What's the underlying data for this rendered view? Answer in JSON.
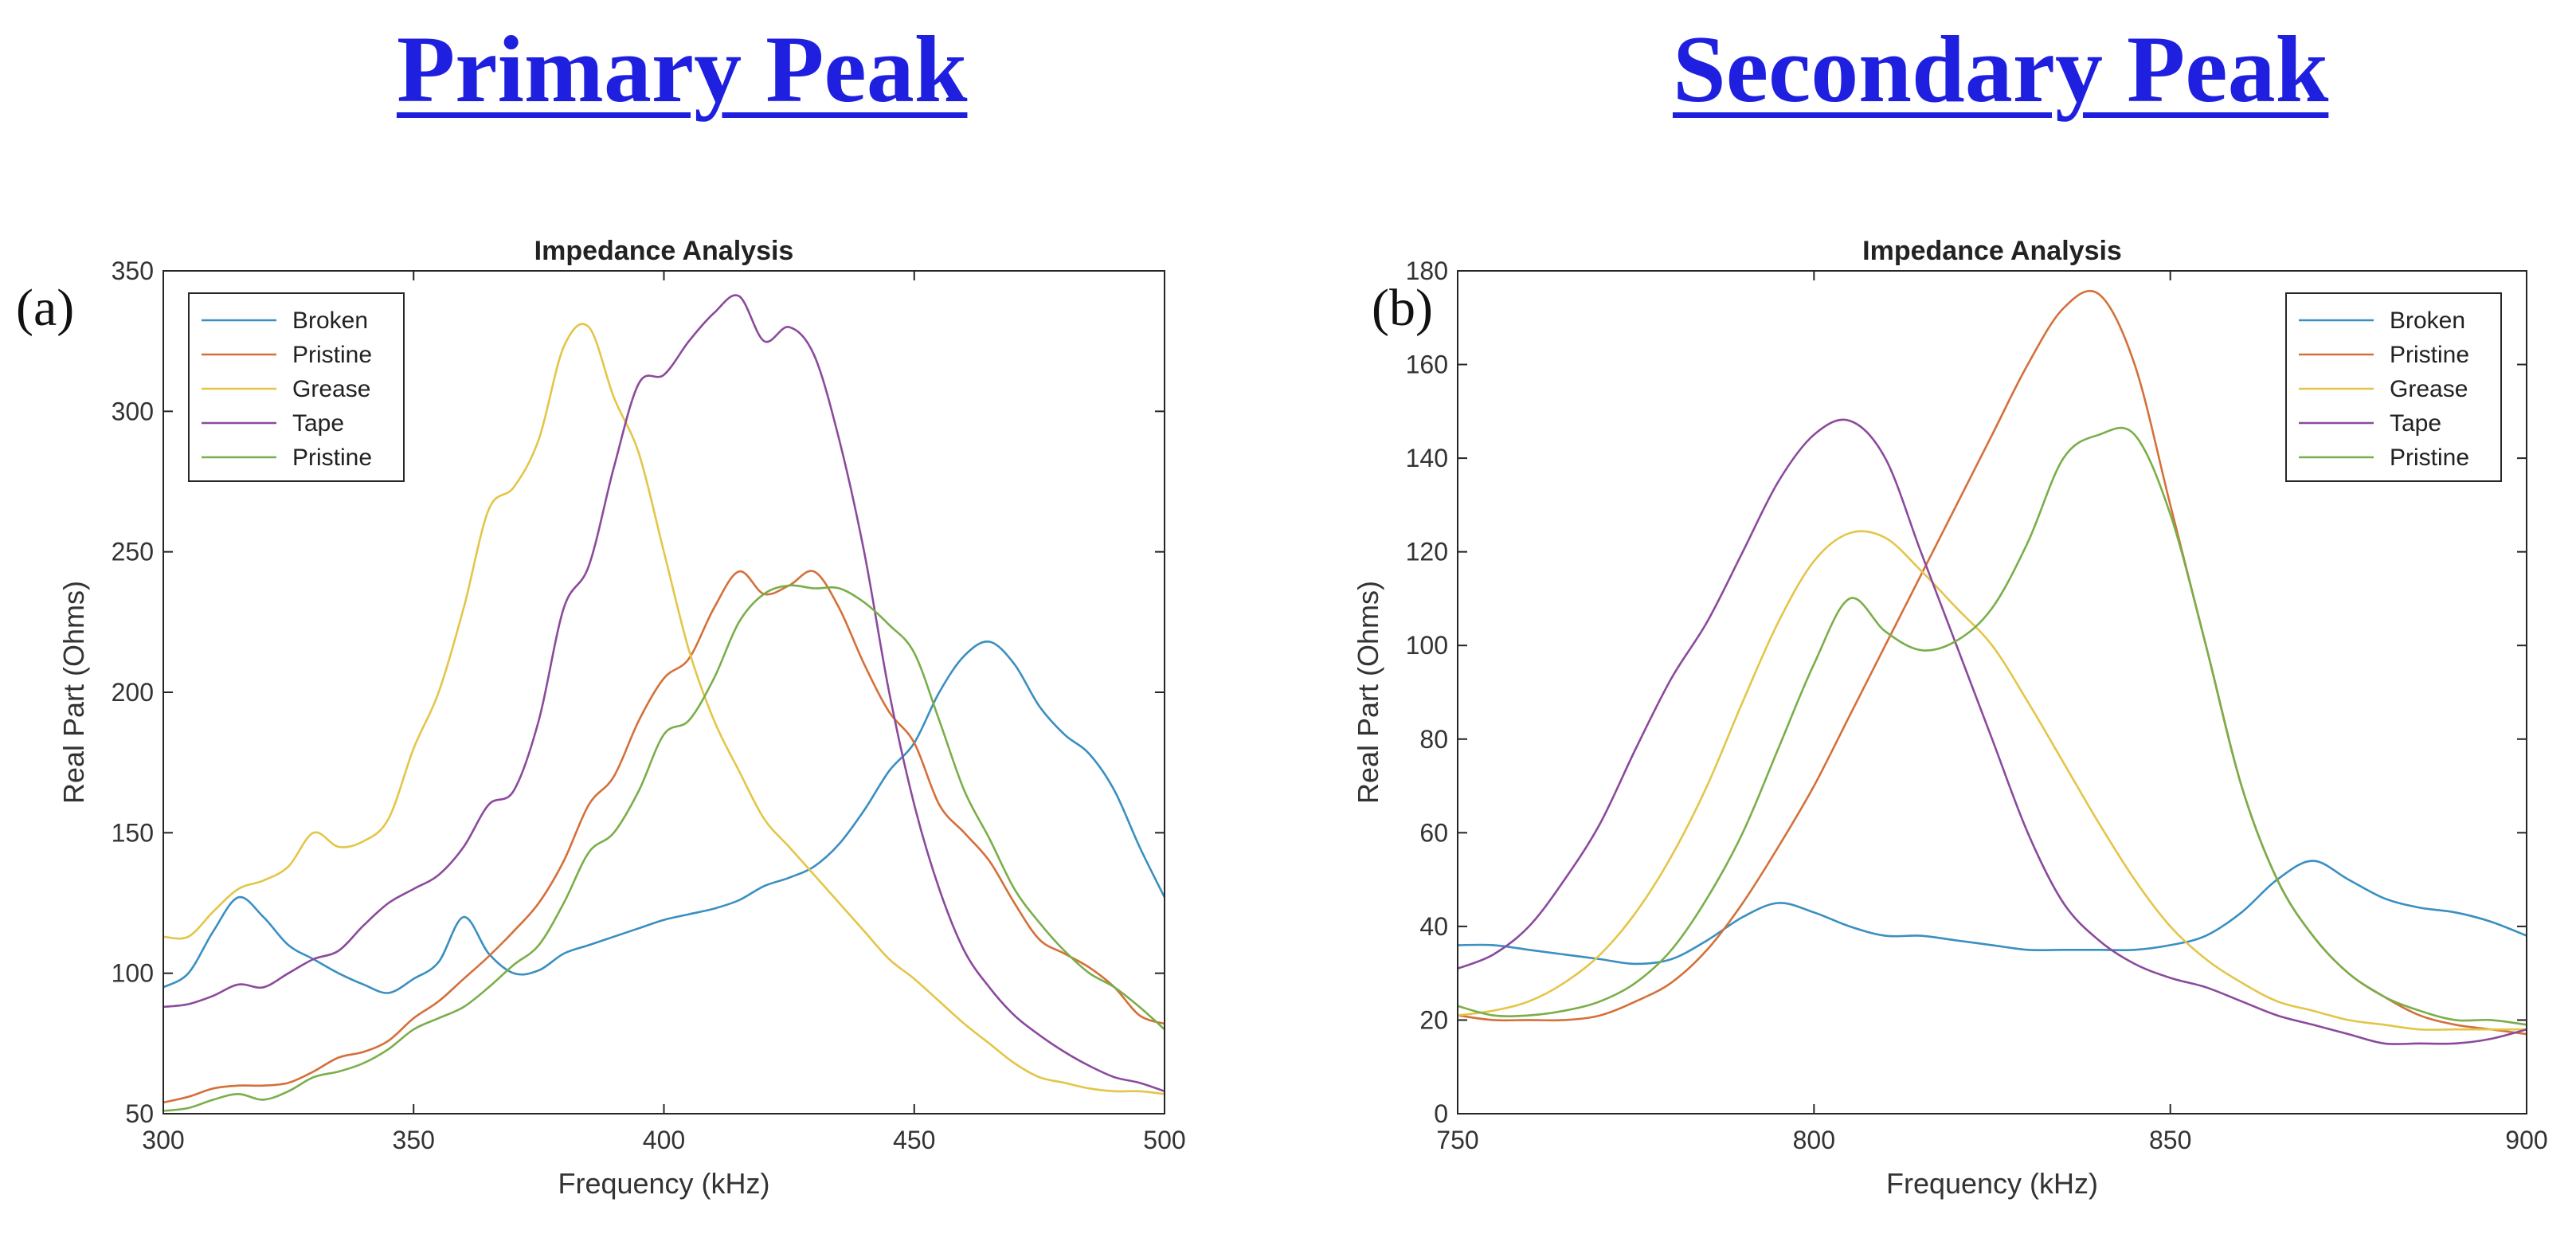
{
  "headings": {
    "left": "Primary Peak",
    "right": "Secondary Peak"
  },
  "colors": {
    "Broken": "#3a8fc1",
    "Pristine": "#d4703a",
    "Grease": "#e3c648",
    "Tape": "#8b4a9c",
    "Pristine2": "#7aae4a"
  },
  "chart_data": [
    {
      "panel_label": "(a)",
      "type": "line",
      "title": "Impedance Analysis",
      "xlabel": "Frequency (kHz)",
      "ylabel": "Real Part (Ohms)",
      "xlim": [
        300,
        500
      ],
      "ylim": [
        50,
        350
      ],
      "xticks": [
        300,
        350,
        400,
        450,
        500
      ],
      "yticks": [
        50,
        100,
        150,
        200,
        250,
        300,
        350
      ],
      "legend_position": "top-left",
      "series": [
        {
          "name": "Broken",
          "color_key": "Broken",
          "x": [
            300,
            305,
            310,
            315,
            320,
            325,
            330,
            335,
            340,
            345,
            350,
            355,
            360,
            365,
            370,
            375,
            380,
            385,
            390,
            395,
            400,
            405,
            410,
            415,
            420,
            425,
            430,
            435,
            440,
            445,
            450,
            455,
            460,
            465,
            470,
            475,
            480,
            485,
            490,
            495,
            500
          ],
          "y": [
            95,
            100,
            115,
            127,
            120,
            110,
            105,
            100,
            96,
            93,
            98,
            104,
            120,
            107,
            100,
            101,
            107,
            110,
            113,
            116,
            119,
            121,
            123,
            126,
            131,
            134,
            138,
            146,
            158,
            172,
            182,
            200,
            213,
            218,
            210,
            195,
            185,
            178,
            165,
            145,
            127
          ]
        },
        {
          "name": "Pristine",
          "color_key": "Pristine",
          "x": [
            300,
            305,
            310,
            315,
            320,
            325,
            330,
            335,
            340,
            345,
            350,
            355,
            360,
            365,
            370,
            375,
            380,
            385,
            390,
            395,
            400,
            405,
            410,
            415,
            420,
            425,
            430,
            435,
            440,
            445,
            450,
            455,
            460,
            465,
            470,
            475,
            480,
            485,
            490,
            495,
            500
          ],
          "y": [
            54,
            56,
            59,
            60,
            60,
            61,
            65,
            70,
            72,
            76,
            84,
            90,
            98,
            106,
            115,
            125,
            140,
            160,
            170,
            190,
            205,
            212,
            230,
            243,
            235,
            238,
            243,
            230,
            210,
            193,
            182,
            160,
            150,
            140,
            125,
            112,
            107,
            102,
            95,
            85,
            82
          ]
        },
        {
          "name": "Grease",
          "color_key": "Grease",
          "x": [
            300,
            305,
            310,
            315,
            320,
            325,
            330,
            335,
            340,
            345,
            350,
            355,
            360,
            365,
            370,
            375,
            380,
            385,
            390,
            395,
            400,
            405,
            410,
            415,
            420,
            425,
            430,
            435,
            440,
            445,
            450,
            455,
            460,
            465,
            470,
            475,
            480,
            485,
            490,
            495,
            500
          ],
          "y": [
            113,
            113,
            122,
            130,
            133,
            138,
            150,
            145,
            147,
            155,
            180,
            200,
            230,
            265,
            273,
            290,
            323,
            330,
            305,
            285,
            250,
            215,
            190,
            172,
            155,
            145,
            135,
            125,
            115,
            105,
            98,
            90,
            82,
            75,
            68,
            63,
            61,
            59,
            58,
            58,
            57
          ]
        },
        {
          "name": "Tape",
          "color_key": "Tape",
          "x": [
            300,
            305,
            310,
            315,
            320,
            325,
            330,
            335,
            340,
            345,
            350,
            355,
            360,
            365,
            370,
            375,
            380,
            385,
            390,
            395,
            400,
            405,
            410,
            415,
            420,
            425,
            430,
            435,
            440,
            445,
            450,
            455,
            460,
            465,
            470,
            475,
            480,
            485,
            490,
            495,
            500
          ],
          "y": [
            88,
            89,
            92,
            96,
            95,
            100,
            105,
            108,
            117,
            125,
            130,
            135,
            145,
            160,
            165,
            190,
            230,
            245,
            280,
            310,
            313,
            325,
            335,
            341,
            325,
            330,
            320,
            290,
            250,
            200,
            160,
            130,
            108,
            95,
            85,
            78,
            72,
            67,
            63,
            61,
            58
          ]
        },
        {
          "name": "Pristine",
          "color_key": "Pristine2",
          "x": [
            300,
            305,
            310,
            315,
            320,
            325,
            330,
            335,
            340,
            345,
            350,
            355,
            360,
            365,
            370,
            375,
            380,
            385,
            390,
            395,
            400,
            405,
            410,
            415,
            420,
            425,
            430,
            435,
            440,
            445,
            450,
            455,
            460,
            465,
            470,
            475,
            480,
            485,
            490,
            495,
            500
          ],
          "y": [
            51,
            52,
            55,
            57,
            55,
            58,
            63,
            65,
            68,
            73,
            80,
            84,
            88,
            95,
            103,
            110,
            125,
            143,
            150,
            165,
            185,
            190,
            205,
            225,
            235,
            238,
            237,
            237,
            232,
            224,
            214,
            190,
            165,
            148,
            130,
            118,
            108,
            100,
            95,
            88,
            80
          ]
        }
      ]
    },
    {
      "panel_label": "(b)",
      "type": "line",
      "title": "Impedance Analysis",
      "xlabel": "Frequency (kHz)",
      "ylabel": "Real Part (Ohms)",
      "xlim": [
        750,
        900
      ],
      "ylim": [
        0,
        180
      ],
      "xticks": [
        750,
        800,
        850,
        900
      ],
      "yticks": [
        0,
        20,
        40,
        60,
        80,
        100,
        120,
        140,
        160,
        180
      ],
      "legend_position": "top-right",
      "series": [
        {
          "name": "Broken",
          "color_key": "Broken",
          "x": [
            750,
            755,
            760,
            765,
            770,
            775,
            780,
            785,
            790,
            795,
            800,
            805,
            810,
            815,
            820,
            825,
            830,
            835,
            840,
            845,
            850,
            855,
            860,
            865,
            870,
            875,
            880,
            885,
            890,
            895,
            900
          ],
          "y": [
            36,
            36,
            35,
            34,
            33,
            32,
            33,
            37,
            42,
            45,
            43,
            40,
            38,
            38,
            37,
            36,
            35,
            35,
            35,
            35,
            36,
            38,
            43,
            50,
            54,
            50,
            46,
            44,
            43,
            41,
            38
          ]
        },
        {
          "name": "Pristine",
          "color_key": "Pristine",
          "x": [
            750,
            755,
            760,
            765,
            770,
            775,
            780,
            785,
            790,
            795,
            800,
            805,
            810,
            815,
            820,
            825,
            830,
            835,
            840,
            845,
            850,
            855,
            860,
            865,
            870,
            875,
            880,
            885,
            890,
            895,
            900
          ],
          "y": [
            21,
            20,
            20,
            20,
            21,
            24,
            28,
            35,
            45,
            57,
            70,
            85,
            100,
            115,
            130,
            145,
            160,
            172,
            175,
            160,
            130,
            100,
            70,
            50,
            38,
            30,
            25,
            21,
            19,
            18,
            17
          ]
        },
        {
          "name": "Grease",
          "color_key": "Grease",
          "x": [
            750,
            755,
            760,
            765,
            770,
            775,
            780,
            785,
            790,
            795,
            800,
            805,
            810,
            815,
            820,
            825,
            830,
            835,
            840,
            845,
            850,
            855,
            860,
            865,
            870,
            875,
            880,
            885,
            890,
            895,
            900
          ],
          "y": [
            21,
            22,
            24,
            28,
            34,
            43,
            55,
            70,
            88,
            105,
            118,
            124,
            123,
            116,
            108,
            100,
            88,
            75,
            62,
            50,
            40,
            33,
            28,
            24,
            22,
            20,
            19,
            18,
            18,
            18,
            18
          ]
        },
        {
          "name": "Tape",
          "color_key": "Tape",
          "x": [
            750,
            755,
            760,
            765,
            770,
            775,
            780,
            785,
            790,
            795,
            800,
            805,
            810,
            815,
            820,
            825,
            830,
            835,
            840,
            845,
            850,
            855,
            860,
            865,
            870,
            875,
            880,
            885,
            890,
            895,
            900
          ],
          "y": [
            31,
            34,
            40,
            50,
            62,
            78,
            93,
            105,
            120,
            135,
            145,
            148,
            140,
            120,
            100,
            80,
            60,
            45,
            37,
            32,
            29,
            27,
            24,
            21,
            19,
            17,
            15,
            15,
            15,
            16,
            18
          ]
        },
        {
          "name": "Pristine",
          "color_key": "Pristine2",
          "x": [
            750,
            755,
            760,
            765,
            770,
            775,
            780,
            785,
            790,
            795,
            800,
            805,
            810,
            815,
            820,
            825,
            830,
            835,
            840,
            845,
            850,
            855,
            860,
            865,
            870,
            875,
            880,
            885,
            890,
            895,
            900
          ],
          "y": [
            23,
            21,
            21,
            22,
            24,
            28,
            35,
            46,
            60,
            78,
            96,
            110,
            103,
            99,
            101,
            108,
            122,
            140,
            145,
            145,
            128,
            100,
            70,
            50,
            38,
            30,
            25,
            22,
            20,
            20,
            19
          ]
        }
      ]
    }
  ]
}
